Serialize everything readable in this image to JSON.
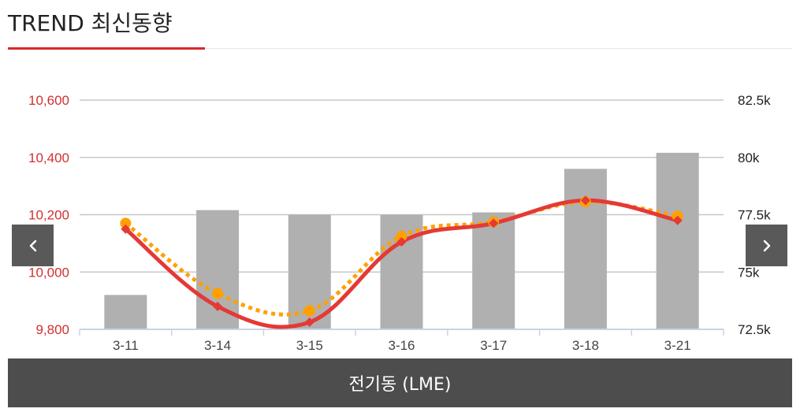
{
  "header": {
    "title": "TREND 최신동향",
    "accent_color": "#d9292a"
  },
  "nav": {
    "prev_icon": "chevron-left-icon",
    "next_icon": "chevron-right-icon"
  },
  "footer": {
    "label": "전기동 (LME)"
  },
  "chart_data": {
    "type": "bar",
    "categories": [
      "3-11",
      "3-14",
      "3-15",
      "3-16",
      "3-17",
      "3-18",
      "3-21"
    ],
    "series": [
      {
        "type": "bar",
        "axis": "right",
        "color": "#b0b0b0",
        "values": [
          74.0,
          77.7,
          77.5,
          77.5,
          77.6,
          79.5,
          80.2
        ]
      },
      {
        "type": "line",
        "axis": "left",
        "color": "#e53935",
        "style": "solid",
        "values": [
          10150,
          9880,
          9825,
          10105,
          10170,
          10250,
          10180
        ]
      },
      {
        "type": "line",
        "axis": "left",
        "color": "#ffa000",
        "style": "dotted",
        "values": [
          10170,
          9925,
          9865,
          10125,
          10175,
          10245,
          10195
        ]
      }
    ],
    "y_left": {
      "ylim": [
        9800,
        10600
      ],
      "ticks": [
        "9,800",
        "10,000",
        "10,200",
        "10,400",
        "10,600"
      ],
      "tick_values": [
        9800,
        10000,
        10200,
        10400,
        10600
      ],
      "color": "#d32f2f"
    },
    "y_right": {
      "ylim": [
        72.5,
        82.5
      ],
      "ticks": [
        "72.5k",
        "75k",
        "77.5k",
        "80k",
        "82.5k"
      ],
      "tick_values": [
        72.5,
        75,
        77.5,
        80,
        82.5
      ],
      "color": "#222222"
    },
    "grid": true
  }
}
